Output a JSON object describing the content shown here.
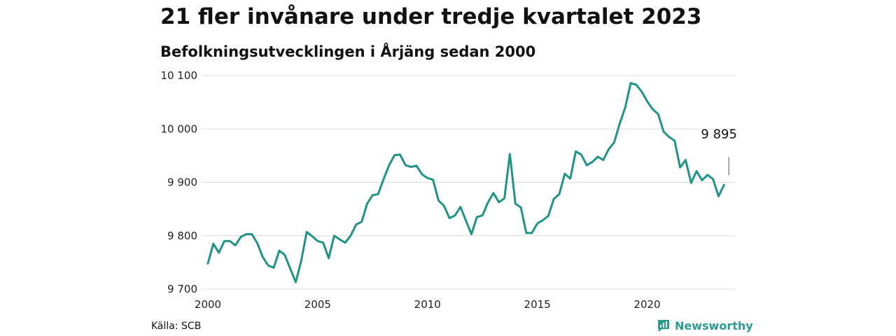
{
  "chart_data": {
    "type": "line",
    "title": "21 fler invånare under tredje kvartalet 2023",
    "subtitle": "Befolkningsutvecklingen i Årjäng sedan 2000",
    "xlabel": "",
    "ylabel": "",
    "xlim": [
      2000,
      2024
    ],
    "ylim": [
      9700,
      10100
    ],
    "x_ticks": [
      2000,
      2005,
      2010,
      2015,
      2020
    ],
    "x_tick_labels": [
      "2000",
      "2005",
      "2010",
      "2015",
      "2020"
    ],
    "y_ticks": [
      9700,
      9800,
      9900,
      10000,
      10100
    ],
    "y_tick_labels": [
      "9 700",
      "9 800",
      "9 900",
      "10 000",
      "10 100"
    ],
    "grid": "horizontal",
    "legend": "none",
    "annotation": {
      "text": "9 895",
      "x": 2023.75,
      "y": 9895
    },
    "series": [
      {
        "color": "#1f9484",
        "points": [
          [
            2000.0,
            9748
          ],
          [
            2000.25,
            9785
          ],
          [
            2000.5,
            9768
          ],
          [
            2000.75,
            9790
          ],
          [
            2001.0,
            9790
          ],
          [
            2001.25,
            9782
          ],
          [
            2001.5,
            9798
          ],
          [
            2001.75,
            9803
          ],
          [
            2002.0,
            9803
          ],
          [
            2002.25,
            9786
          ],
          [
            2002.5,
            9760
          ],
          [
            2002.75,
            9744
          ],
          [
            2003.0,
            9740
          ],
          [
            2003.25,
            9772
          ],
          [
            2003.5,
            9764
          ],
          [
            2003.75,
            9738
          ],
          [
            2004.0,
            9713
          ],
          [
            2004.25,
            9753
          ],
          [
            2004.5,
            9807
          ],
          [
            2004.75,
            9799
          ],
          [
            2005.0,
            9790
          ],
          [
            2005.25,
            9787
          ],
          [
            2005.5,
            9758
          ],
          [
            2005.75,
            9800
          ],
          [
            2006.0,
            9793
          ],
          [
            2006.25,
            9787
          ],
          [
            2006.5,
            9800
          ],
          [
            2006.75,
            9821
          ],
          [
            2007.0,
            9826
          ],
          [
            2007.25,
            9860
          ],
          [
            2007.5,
            9876
          ],
          [
            2007.75,
            9878
          ],
          [
            2008.0,
            9906
          ],
          [
            2008.25,
            9932
          ],
          [
            2008.5,
            9951
          ],
          [
            2008.75,
            9952
          ],
          [
            2009.0,
            9932
          ],
          [
            2009.25,
            9929
          ],
          [
            2009.5,
            9931
          ],
          [
            2009.75,
            9915
          ],
          [
            2010.0,
            9908
          ],
          [
            2010.25,
            9905
          ],
          [
            2010.5,
            9866
          ],
          [
            2010.75,
            9856
          ],
          [
            2011.0,
            9833
          ],
          [
            2011.25,
            9838
          ],
          [
            2011.5,
            9854
          ],
          [
            2011.75,
            9828
          ],
          [
            2012.0,
            9803
          ],
          [
            2012.25,
            9835
          ],
          [
            2012.5,
            9838
          ],
          [
            2012.75,
            9862
          ],
          [
            2013.0,
            9880
          ],
          [
            2013.25,
            9863
          ],
          [
            2013.5,
            9870
          ],
          [
            2013.75,
            9953
          ],
          [
            2014.0,
            9860
          ],
          [
            2014.25,
            9853
          ],
          [
            2014.5,
            9805
          ],
          [
            2014.75,
            9805
          ],
          [
            2015.0,
            9823
          ],
          [
            2015.25,
            9829
          ],
          [
            2015.5,
            9837
          ],
          [
            2015.75,
            9869
          ],
          [
            2016.0,
            9878
          ],
          [
            2016.25,
            9916
          ],
          [
            2016.5,
            9907
          ],
          [
            2016.75,
            9958
          ],
          [
            2017.0,
            9952
          ],
          [
            2017.25,
            9932
          ],
          [
            2017.5,
            9938
          ],
          [
            2017.75,
            9948
          ],
          [
            2018.0,
            9942
          ],
          [
            2018.25,
            9962
          ],
          [
            2018.5,
            9975
          ],
          [
            2018.75,
            10010
          ],
          [
            2019.0,
            10040
          ],
          [
            2019.25,
            10086
          ],
          [
            2019.5,
            10083
          ],
          [
            2019.75,
            10070
          ],
          [
            2020.0,
            10052
          ],
          [
            2020.25,
            10037
          ],
          [
            2020.5,
            10028
          ],
          [
            2020.75,
            9995
          ],
          [
            2021.0,
            9985
          ],
          [
            2021.25,
            9978
          ],
          [
            2021.5,
            9928
          ],
          [
            2021.75,
            9942
          ],
          [
            2022.0,
            9899
          ],
          [
            2022.25,
            9921
          ],
          [
            2022.5,
            9904
          ],
          [
            2022.75,
            9914
          ],
          [
            2023.0,
            9906
          ],
          [
            2023.25,
            9874
          ],
          [
            2023.5,
            9895
          ]
        ]
      }
    ]
  },
  "footer": {
    "source": "Källa: SCB",
    "brand": "Newsworthy"
  }
}
